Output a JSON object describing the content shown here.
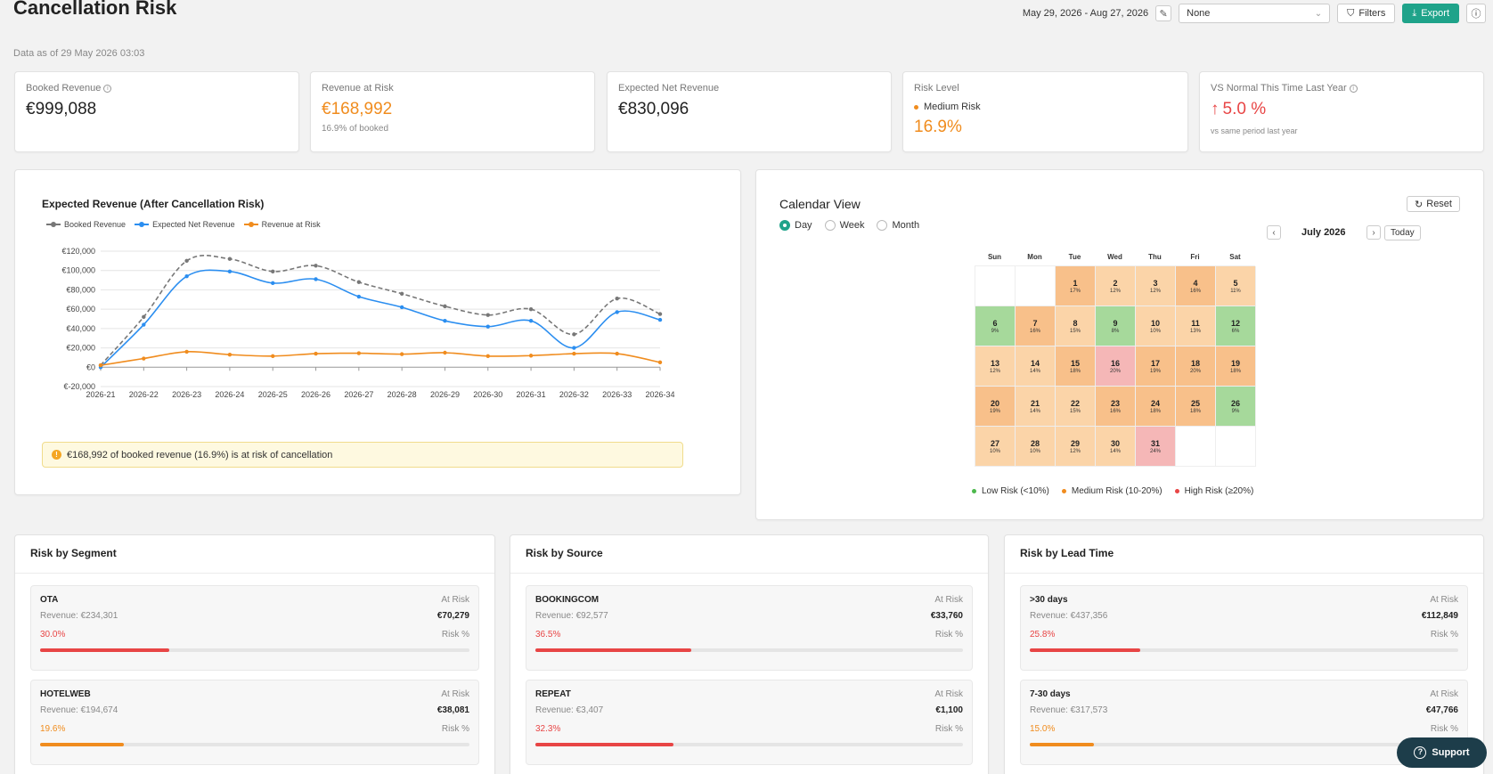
{
  "header": {
    "title": "Cancellation Risk",
    "data_as_of": "Data as of 29 May 2026 03:03",
    "date_range": "May 29, 2026 - Aug 27, 2026",
    "select_value": "None",
    "filters_label": "Filters",
    "export_label": "Export"
  },
  "kpis": {
    "booked": {
      "label": "Booked Revenue",
      "value": "€999,088"
    },
    "at_risk": {
      "label": "Revenue at Risk",
      "value": "€168,992",
      "sub": "16.9% of booked"
    },
    "net": {
      "label": "Expected Net Revenue",
      "value": "€830,096"
    },
    "level": {
      "label": "Risk Level",
      "status": "Medium Risk",
      "value": "16.9%"
    },
    "vs_last_year": {
      "label": "VS Normal This Time Last Year",
      "value": "5.0 %",
      "sub": "vs same period last year"
    }
  },
  "colors": {
    "accent": "#1fa38a",
    "orange": "#f08c1e",
    "blue": "#2b8ef0",
    "gray": "#777777",
    "red": "#e84545",
    "green": "#4cb84c"
  },
  "chart_data": {
    "type": "line",
    "title": "Expected Revenue (After Cancellation Risk)",
    "x": [
      "2026-21",
      "2026-22",
      "2026-23",
      "2026-24",
      "2026-25",
      "2026-26",
      "2026-27",
      "2026-28",
      "2026-29",
      "2026-30",
      "2026-31",
      "2026-32",
      "2026-33",
      "2026-34"
    ],
    "y_ticks": [
      "€-20,000",
      "€0",
      "€20,000",
      "€40,000",
      "€60,000",
      "€80,000",
      "€100,000",
      "€120,000"
    ],
    "ylim": [
      -20000,
      120000
    ],
    "grid": true,
    "legend_position": "top-left",
    "series": [
      {
        "name": "Booked Revenue",
        "color": "#777777",
        "dashed": true,
        "values": [
          2000,
          52000,
          110000,
          112000,
          99000,
          105000,
          88000,
          76000,
          63000,
          54000,
          60000,
          34000,
          71000,
          55000
        ]
      },
      {
        "name": "Expected Net Revenue",
        "color": "#2b8ef0",
        "dashed": false,
        "values": [
          0,
          44000,
          94000,
          99000,
          87000,
          91000,
          73000,
          62000,
          48000,
          42000,
          48000,
          20000,
          57000,
          49000
        ]
      },
      {
        "name": "Revenue at Risk",
        "color": "#f08c1e",
        "dashed": false,
        "values": [
          2000,
          9000,
          16000,
          13000,
          11500,
          14000,
          14500,
          13500,
          15000,
          11500,
          12000,
          14000,
          14000,
          5000
        ]
      }
    ],
    "alert": "€168,992 of booked revenue (16.9%) is at risk of cancellation"
  },
  "calendar": {
    "title": "Calendar View",
    "reset_label": "Reset",
    "views": [
      "Day",
      "Week",
      "Month"
    ],
    "active_view": "Day",
    "month_label": "July 2026",
    "today_label": "Today",
    "weekdays": [
      "Sun",
      "Mon",
      "Tue",
      "Wed",
      "Thu",
      "Fri",
      "Sat"
    ],
    "days": [
      {
        "d": "",
        "p": "",
        "lvl": ""
      },
      {
        "d": "",
        "p": "",
        "lvl": ""
      },
      {
        "d": "1",
        "p": "17%",
        "lvl": "med2"
      },
      {
        "d": "2",
        "p": "12%",
        "lvl": "med1"
      },
      {
        "d": "3",
        "p": "12%",
        "lvl": "med1"
      },
      {
        "d": "4",
        "p": "16%",
        "lvl": "med2"
      },
      {
        "d": "5",
        "p": "11%",
        "lvl": "med1"
      },
      {
        "d": "6",
        "p": "9%",
        "lvl": "low"
      },
      {
        "d": "7",
        "p": "16%",
        "lvl": "med2"
      },
      {
        "d": "8",
        "p": "15%",
        "lvl": "med1"
      },
      {
        "d": "9",
        "p": "8%",
        "lvl": "low"
      },
      {
        "d": "10",
        "p": "10%",
        "lvl": "med1"
      },
      {
        "d": "11",
        "p": "13%",
        "lvl": "med1"
      },
      {
        "d": "12",
        "p": "6%",
        "lvl": "low"
      },
      {
        "d": "13",
        "p": "12%",
        "lvl": "med1"
      },
      {
        "d": "14",
        "p": "14%",
        "lvl": "med1"
      },
      {
        "d": "15",
        "p": "18%",
        "lvl": "med2"
      },
      {
        "d": "16",
        "p": "20%",
        "lvl": "high"
      },
      {
        "d": "17",
        "p": "19%",
        "lvl": "med2"
      },
      {
        "d": "18",
        "p": "20%",
        "lvl": "med2"
      },
      {
        "d": "19",
        "p": "18%",
        "lvl": "med2"
      },
      {
        "d": "20",
        "p": "19%",
        "lvl": "med2"
      },
      {
        "d": "21",
        "p": "14%",
        "lvl": "med1"
      },
      {
        "d": "22",
        "p": "15%",
        "lvl": "med1"
      },
      {
        "d": "23",
        "p": "16%",
        "lvl": "med2"
      },
      {
        "d": "24",
        "p": "18%",
        "lvl": "med2"
      },
      {
        "d": "25",
        "p": "18%",
        "lvl": "med2"
      },
      {
        "d": "26",
        "p": "9%",
        "lvl": "low"
      },
      {
        "d": "27",
        "p": "10%",
        "lvl": "med1"
      },
      {
        "d": "28",
        "p": "10%",
        "lvl": "med1"
      },
      {
        "d": "29",
        "p": "12%",
        "lvl": "med1"
      },
      {
        "d": "30",
        "p": "14%",
        "lvl": "med1"
      },
      {
        "d": "31",
        "p": "24%",
        "lvl": "high"
      },
      {
        "d": "",
        "p": "",
        "lvl": ""
      },
      {
        "d": "",
        "p": "",
        "lvl": ""
      }
    ],
    "legend": [
      {
        "label": "Low Risk (<10%)",
        "color": "#4cb84c"
      },
      {
        "label": "Medium Risk (10-20%)",
        "color": "#f08c1e"
      },
      {
        "label": "High Risk (≥20%)",
        "color": "#e84545"
      }
    ]
  },
  "cards": [
    {
      "title": "Risk by Segment",
      "items": [
        {
          "name": "OTA",
          "revenue": "Revenue: €234,301",
          "at_risk": "€70,279",
          "pct": "30.0%",
          "fill": 0.3,
          "color": "#e84545"
        },
        {
          "name": "HOTELWEB",
          "revenue": "Revenue: €194,674",
          "at_risk": "€38,081",
          "pct": "19.6%",
          "fill": 0.196,
          "color": "#f08c1e"
        }
      ]
    },
    {
      "title": "Risk by Source",
      "items": [
        {
          "name": "BOOKINGCOM",
          "revenue": "Revenue: €92,577",
          "at_risk": "€33,760",
          "pct": "36.5%",
          "fill": 0.365,
          "color": "#e84545"
        },
        {
          "name": "REPEAT",
          "revenue": "Revenue: €3,407",
          "at_risk": "€1,100",
          "pct": "32.3%",
          "fill": 0.323,
          "color": "#e84545"
        }
      ]
    },
    {
      "title": "Risk by Lead Time",
      "items": [
        {
          "name": ">30 days",
          "revenue": "Revenue: €437,356",
          "at_risk": "€112,849",
          "pct": "25.8%",
          "fill": 0.258,
          "color": "#e84545"
        },
        {
          "name": "7-30 days",
          "revenue": "Revenue: €317,573",
          "at_risk": "€47,766",
          "pct": "15.0%",
          "fill": 0.15,
          "color": "#f08c1e"
        }
      ]
    }
  ],
  "labels": {
    "at_risk": "At Risk",
    "risk_pct": "Risk %"
  },
  "support_label": "Support"
}
